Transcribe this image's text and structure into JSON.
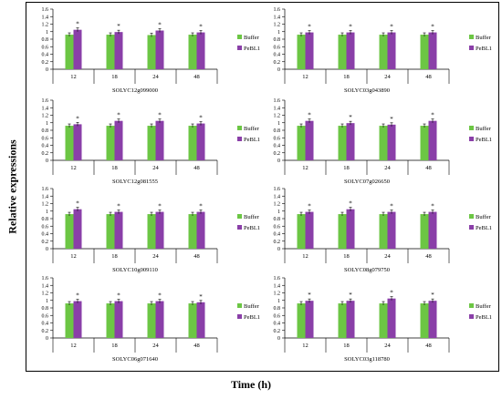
{
  "figure": {
    "ylabel": "Relative expressions",
    "xlabel": "Time (h)"
  },
  "colors": {
    "buffer": "#6cc644",
    "pebl1": "#8a3fa8"
  },
  "chart_data": [
    {
      "type": "bar",
      "title": "SOLYC12g099000",
      "categories": [
        "12",
        "18",
        "24",
        "48"
      ],
      "ylim": [
        0,
        1.6
      ],
      "yticks": [
        "0",
        "0.2",
        "0.4",
        "0.6",
        "0.8",
        "1",
        "1.2",
        "1.4",
        "1.6"
      ],
      "legend": "right",
      "series": [
        {
          "name": "Buffer",
          "values": [
            0.92,
            0.92,
            0.91,
            0.92
          ]
        },
        {
          "name": "PeBL1",
          "values": [
            1.05,
            0.99,
            1.03,
            0.98
          ]
        }
      ],
      "annotations": [
        "*",
        "*",
        "*",
        "*"
      ]
    },
    {
      "type": "bar",
      "title": "SOLYC03g043890",
      "categories": [
        "12",
        "18",
        "24",
        "48"
      ],
      "ylim": [
        0,
        1.6
      ],
      "yticks": [
        "0",
        "0.2",
        "0.4",
        "0.6",
        "0.8",
        "1",
        "1.2",
        "1.4",
        "1.6"
      ],
      "legend": "right",
      "series": [
        {
          "name": "Buffer",
          "values": [
            0.92,
            0.92,
            0.92,
            0.92
          ]
        },
        {
          "name": "PeBL1",
          "values": [
            0.98,
            0.98,
            0.98,
            0.98
          ]
        }
      ],
      "annotations": [
        "*",
        "*",
        "*",
        "*"
      ]
    },
    {
      "type": "bar",
      "title": "SOLYC12g081555",
      "categories": [
        "12",
        "18",
        "24",
        "48"
      ],
      "ylim": [
        0,
        1.6
      ],
      "yticks": [
        "0",
        "0.2",
        "0.4",
        "0.6",
        "0.8",
        "1",
        "1.2",
        "1.4",
        "1.6"
      ],
      "legend": "right",
      "series": [
        {
          "name": "Buffer",
          "values": [
            0.92,
            0.92,
            0.92,
            0.92
          ]
        },
        {
          "name": "PeBL1",
          "values": [
            0.96,
            1.05,
            1.05,
            0.98
          ]
        }
      ],
      "annotations": [
        "*",
        "*",
        "*",
        "*"
      ]
    },
    {
      "type": "bar",
      "title": "SOLYC07g026650",
      "categories": [
        "12",
        "18",
        "24",
        "48"
      ],
      "ylim": [
        0,
        1.6
      ],
      "yticks": [
        "0",
        "0.2",
        "0.4",
        "0.6",
        "0.8",
        "1",
        "1.2",
        "1.4",
        "1.6"
      ],
      "legend": "right",
      "series": [
        {
          "name": "Buffer",
          "values": [
            0.92,
            0.92,
            0.92,
            0.92
          ]
        },
        {
          "name": "PeBL1",
          "values": [
            1.05,
            0.99,
            0.95,
            1.05
          ]
        }
      ],
      "annotations": [
        "*",
        "*",
        "*",
        "*"
      ]
    },
    {
      "type": "bar",
      "title": "SOLYC10g009110",
      "categories": [
        "12",
        "18",
        "24",
        "48"
      ],
      "ylim": [
        0,
        1.6
      ],
      "yticks": [
        "0",
        "0.2",
        "0.4",
        "0.6",
        "0.8",
        "1",
        "1.2",
        "1.4",
        "1.6"
      ],
      "legend": "right",
      "series": [
        {
          "name": "Buffer",
          "values": [
            0.92,
            0.92,
            0.92,
            0.92
          ]
        },
        {
          "name": "PeBL1",
          "values": [
            1.05,
            0.98,
            0.98,
            0.98
          ]
        }
      ],
      "annotations": [
        "*",
        "*",
        "*",
        "*"
      ]
    },
    {
      "type": "bar",
      "title": "SOLYC08g079750",
      "categories": [
        "12",
        "18",
        "24",
        "48"
      ],
      "ylim": [
        0,
        1.6
      ],
      "yticks": [
        "0",
        "0.2",
        "0.4",
        "0.6",
        "0.8",
        "1",
        "1.2",
        "1.4",
        "1.6"
      ],
      "legend": "right",
      "series": [
        {
          "name": "Buffer",
          "values": [
            0.92,
            0.92,
            0.92,
            0.92
          ]
        },
        {
          "name": "PeBL1",
          "values": [
            0.98,
            1.05,
            0.98,
            0.98
          ]
        }
      ],
      "annotations": [
        "*",
        "*",
        "*",
        "*"
      ]
    },
    {
      "type": "bar",
      "title": "SOLYC06g071640",
      "categories": [
        "12",
        "18",
        "24",
        "48"
      ],
      "ylim": [
        0,
        1.6
      ],
      "yticks": [
        "0",
        "0.2",
        "0.4",
        "0.6",
        "0.8",
        "1",
        "1.2",
        "1.4",
        "1.6"
      ],
      "legend": "right",
      "series": [
        {
          "name": "Buffer",
          "values": [
            0.92,
            0.92,
            0.92,
            0.92
          ]
        },
        {
          "name": "PeBL1",
          "values": [
            0.98,
            0.98,
            0.98,
            0.95
          ]
        }
      ],
      "annotations": [
        "*",
        "*",
        "*",
        "*"
      ]
    },
    {
      "type": "bar",
      "title": "SOLYC03g118780",
      "categories": [
        "12",
        "18",
        "24",
        "48"
      ],
      "ylim": [
        0,
        1.6
      ],
      "yticks": [
        "0",
        "0.2",
        "0.4",
        "0.6",
        "0.8",
        "1",
        "1.2",
        "1.4",
        "1.6"
      ],
      "legend": "right",
      "series": [
        {
          "name": "Buffer",
          "values": [
            0.92,
            0.92,
            0.92,
            0.92
          ]
        },
        {
          "name": "PeBL1",
          "values": [
            0.99,
            0.99,
            1.05,
            0.99
          ]
        }
      ],
      "annotations": [
        "*",
        "*",
        "*",
        "*"
      ]
    }
  ]
}
